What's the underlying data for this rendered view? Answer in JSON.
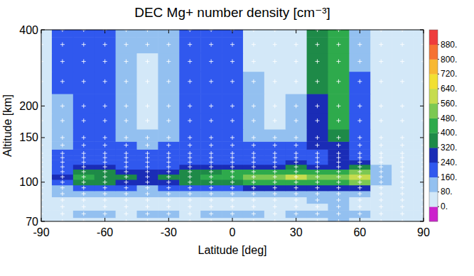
{
  "chart_data": {
    "type": "heatmap",
    "title": "DEC Mg+ number density [cm⁻³]",
    "x_label": "Latitude [deg]",
    "y_label": "Altitude [km]",
    "x": [
      -90,
      -80,
      -70,
      -60,
      -50,
      -40,
      -30,
      -20,
      -10,
      0,
      10,
      20,
      30,
      40,
      50,
      60,
      70,
      80,
      90
    ],
    "y": [
      70,
      75,
      80,
      85,
      90,
      95,
      100,
      105,
      110,
      115,
      120,
      125,
      130,
      140,
      150,
      175,
      200,
      250,
      300,
      350,
      400
    ],
    "z": [
      [
        20,
        30,
        60,
        40,
        30,
        40,
        60,
        30,
        40,
        60,
        40,
        30,
        60,
        40,
        90,
        40,
        20,
        10,
        10
      ],
      [
        20,
        60,
        100,
        90,
        60,
        100,
        80,
        60,
        100,
        90,
        80,
        60,
        100,
        100,
        120,
        80,
        30,
        10,
        10
      ],
      [
        20,
        40,
        70,
        60,
        50,
        60,
        70,
        50,
        60,
        70,
        60,
        50,
        60,
        70,
        80,
        60,
        30,
        10,
        10
      ],
      [
        20,
        50,
        70,
        70,
        60,
        60,
        60,
        60,
        70,
        70,
        60,
        60,
        70,
        80,
        90,
        70,
        30,
        10,
        10
      ],
      [
        30,
        90,
        130,
        120,
        100,
        100,
        110,
        110,
        120,
        130,
        130,
        140,
        150,
        140,
        150,
        150,
        50,
        20,
        10
      ],
      [
        30,
        130,
        210,
        190,
        165,
        150,
        170,
        190,
        210,
        230,
        240,
        260,
        280,
        240,
        260,
        300,
        60,
        20,
        15
      ],
      [
        50,
        220,
        360,
        320,
        280,
        255,
        290,
        320,
        360,
        390,
        410,
        440,
        475,
        410,
        440,
        510,
        100,
        35,
        25
      ],
      [
        60,
        260,
        420,
        380,
        330,
        300,
        340,
        380,
        420,
        460,
        480,
        520,
        560,
        480,
        520,
        600,
        120,
        40,
        30
      ],
      [
        50,
        220,
        350,
        330,
        290,
        260,
        300,
        330,
        370,
        400,
        400,
        450,
        470,
        420,
        450,
        500,
        100,
        35,
        25
      ],
      [
        40,
        170,
        260,
        240,
        210,
        200,
        220,
        240,
        260,
        280,
        280,
        300,
        320,
        290,
        310,
        330,
        80,
        30,
        20
      ],
      [
        35,
        180,
        230,
        220,
        200,
        190,
        200,
        220,
        230,
        230,
        220,
        220,
        240,
        230,
        250,
        240,
        70,
        30,
        20
      ],
      [
        35,
        190,
        230,
        220,
        200,
        190,
        200,
        210,
        220,
        220,
        210,
        210,
        220,
        220,
        240,
        230,
        70,
        30,
        20
      ],
      [
        35,
        180,
        220,
        210,
        190,
        180,
        190,
        200,
        210,
        210,
        200,
        200,
        210,
        220,
        240,
        220,
        60,
        30,
        20
      ],
      [
        30,
        150,
        200,
        190,
        160,
        140,
        160,
        190,
        200,
        190,
        170,
        160,
        170,
        240,
        300,
        200,
        50,
        30,
        20
      ],
      [
        30,
        140,
        220,
        200,
        130,
        80,
        130,
        200,
        220,
        200,
        120,
        80,
        100,
        290,
        380,
        200,
        50,
        25,
        20
      ],
      [
        30,
        140,
        220,
        190,
        120,
        70,
        120,
        190,
        210,
        190,
        100,
        60,
        90,
        300,
        400,
        190,
        50,
        25,
        20
      ],
      [
        30,
        150,
        230,
        200,
        110,
        70,
        110,
        180,
        210,
        200,
        90,
        60,
        80,
        310,
        420,
        180,
        50,
        25,
        20
      ],
      [
        30,
        160,
        230,
        190,
        100,
        60,
        100,
        180,
        220,
        200,
        80,
        50,
        60,
        320,
        420,
        160,
        40,
        25,
        20
      ],
      [
        30,
        170,
        230,
        180,
        110,
        70,
        110,
        190,
        230,
        190,
        70,
        40,
        50,
        330,
        430,
        150,
        40,
        25,
        20
      ],
      [
        30,
        170,
        220,
        170,
        120,
        80,
        130,
        200,
        230,
        180,
        60,
        40,
        50,
        340,
        420,
        140,
        40,
        25,
        20
      ],
      [
        30,
        160,
        210,
        160,
        130,
        90,
        140,
        200,
        230,
        170,
        60,
        40,
        50,
        340,
        400,
        130,
        40,
        25,
        20
      ]
    ],
    "xlim": [
      -90,
      90
    ],
    "xticks": [
      -90,
      -60,
      -30,
      0,
      30,
      60,
      90
    ],
    "ylim": [
      70,
      400
    ],
    "yticks": [
      70,
      100,
      150,
      200,
      400
    ],
    "log": "y",
    "colorbar": {
      "range": [
        -80,
        960
      ],
      "levels": [
        -80,
        0,
        80,
        160,
        240,
        320,
        400,
        480,
        560,
        640,
        720,
        800,
        880,
        960
      ],
      "colors": [
        "#cc22cc",
        "#d3e8f8",
        "#93c0f0",
        "#3058ee",
        "#1a2cb6",
        "#1e8a48",
        "#2eaa4c",
        "#7cc852",
        "#c6dc4e",
        "#f2e032",
        "#f8b832",
        "#f67232",
        "#ee3c3c"
      ],
      "ticks": [
        {
          "value": 0,
          "label": "0."
        },
        {
          "value": 80,
          "label": "80."
        },
        {
          "value": 160,
          "label": "160."
        },
        {
          "value": 240,
          "label": "240."
        },
        {
          "value": 320,
          "label": "320."
        },
        {
          "value": 400,
          "label": "400."
        },
        {
          "value": 480,
          "label": "480."
        },
        {
          "value": 560,
          "label": "560."
        },
        {
          "value": 640,
          "label": "640."
        },
        {
          "value": 720,
          "label": "720."
        },
        {
          "value": 800,
          "label": "800."
        },
        {
          "value": 880,
          "label": "880."
        }
      ]
    }
  }
}
